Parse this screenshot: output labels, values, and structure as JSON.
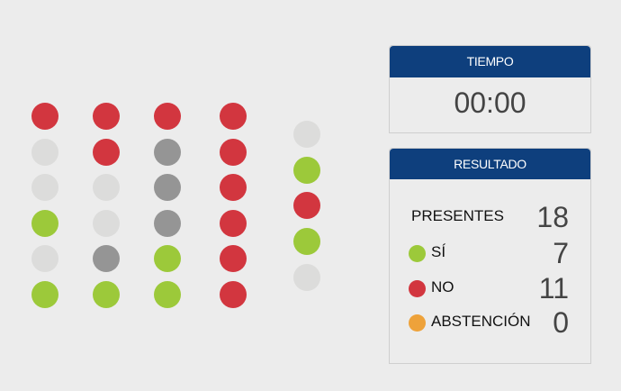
{
  "colors": {
    "si": "#9cc93a",
    "no": "#d2363f",
    "abstencion": "#eea23a",
    "ausente": "#959595",
    "vacio": "#dcdcdb",
    "header": "#0e3f7d"
  },
  "seats": [
    [
      "no",
      "vacio",
      "vacio",
      "si",
      "vacio",
      "si"
    ],
    [
      "no",
      "no",
      "vacio",
      "vacio",
      "ausente",
      "si"
    ],
    [
      "no",
      "ausente",
      "ausente",
      "ausente",
      "si",
      "si"
    ],
    [
      "no",
      "no",
      "no",
      "no",
      "no",
      "no"
    ],
    [
      "vacio",
      "si",
      "no",
      "si",
      "vacio"
    ]
  ],
  "tiempo": {
    "title": "TIEMPO",
    "value": "00:00"
  },
  "resultado": {
    "title": "RESULTADO",
    "presentes": {
      "label": "PRESENTES",
      "value": "18"
    },
    "si": {
      "label": "SÍ",
      "value": "7"
    },
    "no": {
      "label": "NO",
      "value": "11"
    },
    "abstencion": {
      "label": "ABSTENCIÓN",
      "value": "0"
    }
  }
}
